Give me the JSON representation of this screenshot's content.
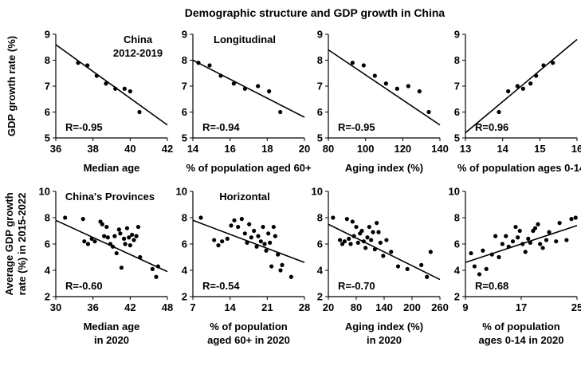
{
  "figure": {
    "title": "Demographic structure and GDP growth in China"
  },
  "rows": [
    {
      "ylabel": [
        "GDP growth rate (%)"
      ]
    },
    {
      "ylabel": [
        "Average GDP growth",
        "rate (%) in 2015-2022"
      ]
    }
  ],
  "chart_data": [
    {
      "type": "scatter",
      "annotations": [
        "China",
        "2012-2019"
      ],
      "r_label": "R=-0.95",
      "xlabel": [
        "Median age"
      ],
      "xlim": [
        36,
        42
      ],
      "xticks": [
        "36",
        "38",
        "40",
        "42"
      ],
      "ylim": [
        5,
        9
      ],
      "yticks": [
        "5",
        "6",
        "7",
        "8",
        "9"
      ],
      "points": [
        [
          37.2,
          7.9
        ],
        [
          37.7,
          7.8
        ],
        [
          38.2,
          7.4
        ],
        [
          38.7,
          7.1
        ],
        [
          39.2,
          6.9
        ],
        [
          39.7,
          6.9
        ],
        [
          40.0,
          6.8
        ],
        [
          40.5,
          6.0
        ]
      ],
      "trend": [
        [
          36,
          8.6
        ],
        [
          42,
          5.5
        ]
      ]
    },
    {
      "type": "scatter",
      "annotations": [
        "Longitudinal"
      ],
      "r_label": "R=-0.94",
      "xlabel": [
        "% of population aged 60+"
      ],
      "xlim": [
        14,
        20
      ],
      "xticks": [
        "14",
        "16",
        "18",
        "20"
      ],
      "ylim": [
        5,
        9
      ],
      "yticks": [
        "5",
        "6",
        "7",
        "8",
        "9"
      ],
      "points": [
        [
          14.3,
          7.9
        ],
        [
          14.9,
          7.8
        ],
        [
          15.5,
          7.4
        ],
        [
          16.2,
          7.1
        ],
        [
          16.8,
          6.9
        ],
        [
          17.5,
          7.0
        ],
        [
          18.1,
          6.8
        ],
        [
          18.7,
          6.0
        ]
      ],
      "trend": [
        [
          14,
          8.0
        ],
        [
          20,
          5.8
        ]
      ]
    },
    {
      "type": "scatter",
      "annotations": [],
      "r_label": "R=-0.95",
      "xlabel": [
        "Aging index (%)"
      ],
      "xlim": [
        80,
        140
      ],
      "xticks": [
        "80",
        "100",
        "120",
        "140"
      ],
      "ylim": [
        5,
        9
      ],
      "yticks": [
        "5",
        "6",
        "7",
        "8",
        "9"
      ],
      "points": [
        [
          93,
          7.9
        ],
        [
          99,
          7.8
        ],
        [
          105,
          7.4
        ],
        [
          111,
          7.1
        ],
        [
          117,
          6.9
        ],
        [
          123,
          7.0
        ],
        [
          129,
          6.8
        ],
        [
          134,
          6.0
        ]
      ],
      "trend": [
        [
          80,
          8.4
        ],
        [
          140,
          5.5
        ]
      ]
    },
    {
      "type": "scatter",
      "annotations": [],
      "r_label": "R=0.96",
      "xlabel": [
        "% of population ages 0-14"
      ],
      "xlim": [
        13,
        16
      ],
      "xticks": [
        "13",
        "14",
        "15",
        "16"
      ],
      "ylim": [
        5,
        9
      ],
      "yticks": [
        "5",
        "6",
        "7",
        "8",
        "9"
      ],
      "points": [
        [
          13.9,
          6.0
        ],
        [
          14.15,
          6.8
        ],
        [
          14.4,
          7.0
        ],
        [
          14.55,
          6.9
        ],
        [
          14.75,
          7.1
        ],
        [
          14.9,
          7.4
        ],
        [
          15.1,
          7.8
        ],
        [
          15.35,
          7.9
        ]
      ],
      "trend": [
        [
          13,
          5.2
        ],
        [
          16,
          8.8
        ]
      ]
    },
    {
      "type": "scatter",
      "annotations": [
        "China's Provinces"
      ],
      "r_label": "R=-0.60",
      "xlabel": [
        "Median age",
        "in 2020"
      ],
      "xlim": [
        30,
        48
      ],
      "xticks": [
        "30",
        "36",
        "42",
        "48"
      ],
      "ylim": [
        2,
        10
      ],
      "yticks": [
        "2",
        "4",
        "6",
        "8",
        "10"
      ],
      "points": [
        [
          31.5,
          8.0
        ],
        [
          34.4,
          7.9
        ],
        [
          34.6,
          6.2
        ],
        [
          35.2,
          6.0
        ],
        [
          35.8,
          6.4
        ],
        [
          36.3,
          6.2
        ],
        [
          37.2,
          7.7
        ],
        [
          37.5,
          7.5
        ],
        [
          37.8,
          6.6
        ],
        [
          38.2,
          7.3
        ],
        [
          38.4,
          6.5
        ],
        [
          38.8,
          6.0
        ],
        [
          39.2,
          5.8
        ],
        [
          39.5,
          6.6
        ],
        [
          39.8,
          5.3
        ],
        [
          40.2,
          7.1
        ],
        [
          40.4,
          6.8
        ],
        [
          40.6,
          4.2
        ],
        [
          41.0,
          6.4
        ],
        [
          41.2,
          6.0
        ],
        [
          41.5,
          7.2
        ],
        [
          41.8,
          6.5
        ],
        [
          42.0,
          5.9
        ],
        [
          42.3,
          6.7
        ],
        [
          42.6,
          6.3
        ],
        [
          43.0,
          6.6
        ],
        [
          43.3,
          7.3
        ],
        [
          43.6,
          5.0
        ],
        [
          45.6,
          4.1
        ],
        [
          46.2,
          3.5
        ],
        [
          46.5,
          4.3
        ]
      ],
      "trend": [
        [
          30,
          7.8
        ],
        [
          48,
          3.9
        ]
      ]
    },
    {
      "type": "scatter",
      "annotations": [
        "Horizontal"
      ],
      "r_label": "R=-0.54",
      "xlabel": [
        "% of population",
        "aged 60+ in 2020"
      ],
      "xlim": [
        7,
        28
      ],
      "xticks": [
        "7",
        "14",
        "21",
        "28"
      ],
      "ylim": [
        2,
        10
      ],
      "yticks": [
        "2",
        "4",
        "6",
        "8",
        "10"
      ],
      "points": [
        [
          8.5,
          8.0
        ],
        [
          11.0,
          6.3
        ],
        [
          11.8,
          5.9
        ],
        [
          12.5,
          6.2
        ],
        [
          13.5,
          6.4
        ],
        [
          14.2,
          7.4
        ],
        [
          14.8,
          7.8
        ],
        [
          15.5,
          7.3
        ],
        [
          16.2,
          7.9
        ],
        [
          16.8,
          6.8
        ],
        [
          17.2,
          6.1
        ],
        [
          17.6,
          7.5
        ],
        [
          18.0,
          6.5
        ],
        [
          18.5,
          7.0
        ],
        [
          19.0,
          5.8
        ],
        [
          19.3,
          6.6
        ],
        [
          19.8,
          6.2
        ],
        [
          20.2,
          7.3
        ],
        [
          20.5,
          6.0
        ],
        [
          20.8,
          5.5
        ],
        [
          21.2,
          6.8
        ],
        [
          21.5,
          6.1
        ],
        [
          21.8,
          4.3
        ],
        [
          22.2,
          7.3
        ],
        [
          22.5,
          6.6
        ],
        [
          23.0,
          5.2
        ],
        [
          23.5,
          4.0
        ],
        [
          23.8,
          4.4
        ],
        [
          25.5,
          3.5
        ]
      ],
      "trend": [
        [
          7,
          7.8
        ],
        [
          28,
          4.6
        ]
      ]
    },
    {
      "type": "scatter",
      "annotations": [],
      "r_label": "R=-0.70",
      "xlabel": [
        "Aging index (%)",
        "in 2020"
      ],
      "xlim": [
        20,
        260
      ],
      "xticks": [
        "20",
        "80",
        "140",
        "200",
        "260"
      ],
      "ylim": [
        2,
        10
      ],
      "yticks": [
        "2",
        "4",
        "6",
        "8",
        "10"
      ],
      "points": [
        [
          30,
          8.0
        ],
        [
          45,
          6.3
        ],
        [
          50,
          6.0
        ],
        [
          55,
          6.2
        ],
        [
          60,
          7.9
        ],
        [
          64,
          6.4
        ],
        [
          68,
          6.0
        ],
        [
          72,
          7.7
        ],
        [
          75,
          6.6
        ],
        [
          80,
          7.3
        ],
        [
          84,
          6.1
        ],
        [
          88,
          6.8
        ],
        [
          92,
          7.0
        ],
        [
          96,
          6.2
        ],
        [
          100,
          5.7
        ],
        [
          104,
          6.5
        ],
        [
          108,
          7.3
        ],
        [
          112,
          6.3
        ],
        [
          116,
          6.9
        ],
        [
          120,
          5.6
        ],
        [
          124,
          7.6
        ],
        [
          128,
          6.9
        ],
        [
          132,
          6.1
        ],
        [
          138,
          5.1
        ],
        [
          145,
          6.3
        ],
        [
          155,
          5.4
        ],
        [
          170,
          4.3
        ],
        [
          190,
          4.1
        ],
        [
          220,
          4.4
        ],
        [
          232,
          3.5
        ],
        [
          240,
          5.4
        ]
      ],
      "trend": [
        [
          20,
          7.5
        ],
        [
          260,
          3.3
        ]
      ]
    },
    {
      "type": "scatter",
      "annotations": [],
      "r_label": "R=0.68",
      "xlabel": [
        "% of population",
        "ages 0-14 in 2020"
      ],
      "xlim": [
        9,
        25
      ],
      "xticks": [
        "9",
        "17",
        "25"
      ],
      "ylim": [
        2,
        10
      ],
      "yticks": [
        "2",
        "4",
        "6",
        "8",
        "10"
      ],
      "points": [
        [
          9.8,
          5.3
        ],
        [
          10.3,
          4.3
        ],
        [
          11.0,
          3.7
        ],
        [
          11.5,
          5.5
        ],
        [
          12.0,
          4.1
        ],
        [
          12.8,
          5.2
        ],
        [
          13.3,
          6.6
        ],
        [
          13.8,
          5.0
        ],
        [
          14.3,
          6.0
        ],
        [
          14.8,
          6.6
        ],
        [
          15.2,
          5.8
        ],
        [
          15.8,
          6.2
        ],
        [
          16.2,
          7.3
        ],
        [
          16.5,
          6.5
        ],
        [
          16.8,
          7.0
        ],
        [
          17.2,
          6.0
        ],
        [
          17.6,
          5.4
        ],
        [
          18.0,
          6.4
        ],
        [
          18.3,
          6.1
        ],
        [
          18.7,
          7.0
        ],
        [
          19.0,
          7.2
        ],
        [
          19.4,
          7.5
        ],
        [
          19.7,
          6.0
        ],
        [
          20.1,
          5.7
        ],
        [
          20.6,
          6.3
        ],
        [
          21.0,
          6.9
        ],
        [
          22.0,
          6.2
        ],
        [
          22.5,
          7.6
        ],
        [
          23.5,
          6.3
        ],
        [
          24.2,
          7.9
        ],
        [
          24.8,
          8.0
        ]
      ],
      "trend": [
        [
          9,
          4.6
        ],
        [
          25,
          7.4
        ]
      ]
    }
  ]
}
